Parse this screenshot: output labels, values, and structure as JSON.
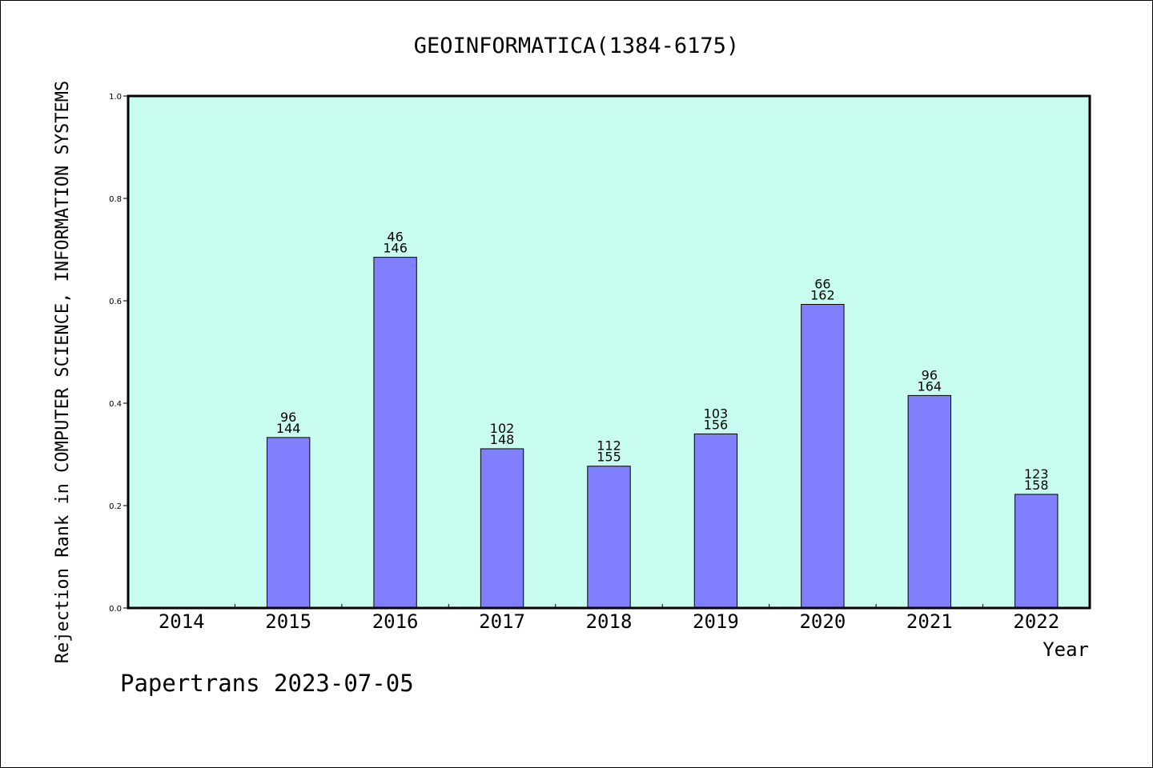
{
  "chart_data": {
    "type": "bar",
    "title": "GEOINFORMATICA(1384-6175)",
    "xlabel": "Year",
    "ylabel": "Rejection Rank in COMPUTER SCIENCE,  INFORMATION SYSTEMS",
    "ylim": [
      0,
      1
    ],
    "yticks": [
      "0.0",
      "0.2",
      "0.4",
      "0.6",
      "0.8",
      "1.0"
    ],
    "categories": [
      "2014",
      "2015",
      "2016",
      "2017",
      "2018",
      "2019",
      "2020",
      "2021",
      "2022"
    ],
    "values": [
      null,
      0.333,
      0.685,
      0.311,
      0.277,
      0.34,
      0.593,
      0.415,
      0.222
    ],
    "labels": [
      null,
      [
        "96",
        "144"
      ],
      [
        "46",
        "146"
      ],
      [
        "102",
        "148"
      ],
      [
        "112",
        "155"
      ],
      [
        "103",
        "156"
      ],
      [
        "66",
        "162"
      ],
      [
        "96",
        "164"
      ],
      [
        "123",
        "158"
      ]
    ],
    "grid": false,
    "colors": {
      "plot_background": "#c8fcee",
      "bar": "#8080ff",
      "bar_edge": "#000000"
    }
  },
  "footer": "Papertrans 2023-07-05"
}
